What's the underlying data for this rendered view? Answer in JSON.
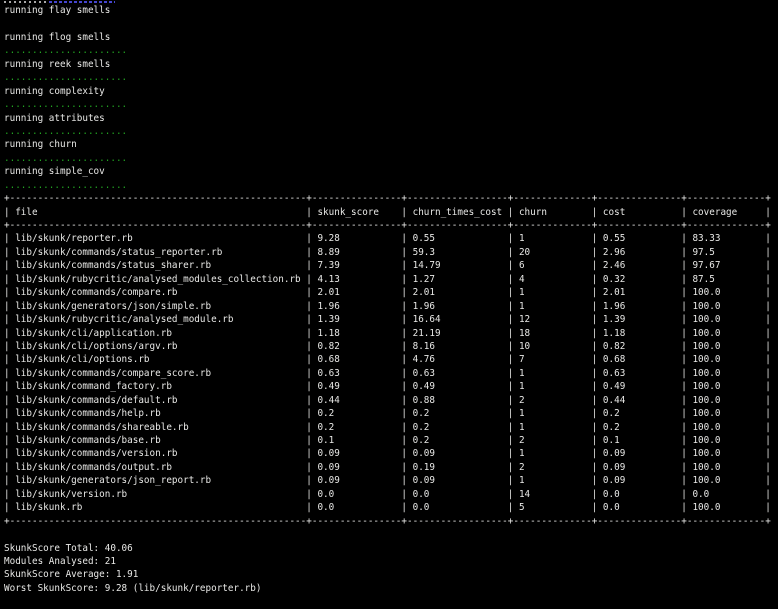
{
  "terminal": {
    "colors": {
      "background": "#000000",
      "foreground": "#e9e9e7",
      "green": "#22a522",
      "blue": "#4646cf"
    }
  },
  "steps": [
    {
      "text": "running flay smells",
      "after": "blank"
    },
    {
      "text": "running flog smells",
      "after": "dots"
    },
    {
      "text": "running reek smells",
      "after": "dots"
    },
    {
      "text": "running complexity",
      "after": "dots"
    },
    {
      "text": "running attributes",
      "after": "dots"
    },
    {
      "text": "running churn",
      "after": "dots"
    },
    {
      "text": "running simple_cov",
      "after": "dots"
    }
  ],
  "progress_dots": "......................",
  "table": {
    "columns": [
      {
        "header": "file",
        "width": 53
      },
      {
        "header": "skunk_score",
        "width": 16
      },
      {
        "header": "churn_times_cost",
        "width": 18
      },
      {
        "header": "churn",
        "width": 14
      },
      {
        "header": "cost",
        "width": 15
      },
      {
        "header": "coverage",
        "width": 14
      }
    ],
    "rows": [
      [
        "lib/skunk/reporter.rb",
        "9.28",
        "0.55",
        "1",
        "0.55",
        "83.33"
      ],
      [
        "lib/skunk/commands/status_reporter.rb",
        "8.89",
        "59.3",
        "20",
        "2.96",
        "97.5"
      ],
      [
        "lib/skunk/commands/status_sharer.rb",
        "7.39",
        "14.79",
        "6",
        "2.46",
        "97.67"
      ],
      [
        "lib/skunk/rubycritic/analysed_modules_collection.rb",
        "4.13",
        "1.27",
        "4",
        "0.32",
        "87.5"
      ],
      [
        "lib/skunk/commands/compare.rb",
        "2.01",
        "2.01",
        "1",
        "2.01",
        "100.0"
      ],
      [
        "lib/skunk/generators/json/simple.rb",
        "1.96",
        "1.96",
        "1",
        "1.96",
        "100.0"
      ],
      [
        "lib/skunk/rubycritic/analysed_module.rb",
        "1.39",
        "16.64",
        "12",
        "1.39",
        "100.0"
      ],
      [
        "lib/skunk/cli/application.rb",
        "1.18",
        "21.19",
        "18",
        "1.18",
        "100.0"
      ],
      [
        "lib/skunk/cli/options/argv.rb",
        "0.82",
        "8.16",
        "10",
        "0.82",
        "100.0"
      ],
      [
        "lib/skunk/cli/options.rb",
        "0.68",
        "4.76",
        "7",
        "0.68",
        "100.0"
      ],
      [
        "lib/skunk/commands/compare_score.rb",
        "0.63",
        "0.63",
        "1",
        "0.63",
        "100.0"
      ],
      [
        "lib/skunk/command_factory.rb",
        "0.49",
        "0.49",
        "1",
        "0.49",
        "100.0"
      ],
      [
        "lib/skunk/commands/default.rb",
        "0.44",
        "0.88",
        "2",
        "0.44",
        "100.0"
      ],
      [
        "lib/skunk/commands/help.rb",
        "0.2",
        "0.2",
        "1",
        "0.2",
        "100.0"
      ],
      [
        "lib/skunk/commands/shareable.rb",
        "0.2",
        "0.2",
        "1",
        "0.2",
        "100.0"
      ],
      [
        "lib/skunk/commands/base.rb",
        "0.1",
        "0.2",
        "2",
        "0.1",
        "100.0"
      ],
      [
        "lib/skunk/commands/version.rb",
        "0.09",
        "0.09",
        "1",
        "0.09",
        "100.0"
      ],
      [
        "lib/skunk/commands/output.rb",
        "0.09",
        "0.19",
        "2",
        "0.09",
        "100.0"
      ],
      [
        "lib/skunk/generators/json_report.rb",
        "0.09",
        "0.09",
        "1",
        "0.09",
        "100.0"
      ],
      [
        "lib/skunk/version.rb",
        "0.0",
        "0.0",
        "14",
        "0.0",
        "0.0"
      ],
      [
        "lib/skunk.rb",
        "0.0",
        "0.0",
        "5",
        "0.0",
        "100.0"
      ]
    ]
  },
  "summary_lines": [
    "SkunkScore Total: 40.06",
    "Modules Analysed: 21",
    "SkunkScore Average: 1.91",
    "Worst SkunkScore: 9.28 (lib/skunk/reporter.rb)"
  ]
}
